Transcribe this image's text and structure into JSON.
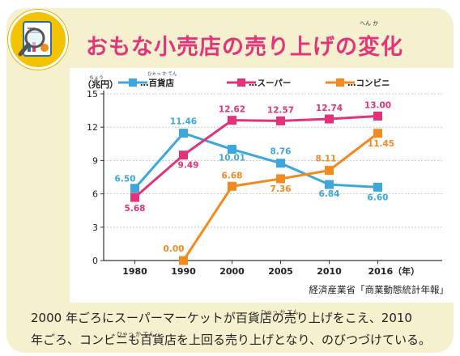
{
  "title": "おもな小売店の売り上げの変化",
  "title_ruby": "へん か",
  "chart_data": {
    "type": "line",
    "ylabel": "（兆円）",
    "ylabel_ruby": "ちょう",
    "x": [
      "1980",
      "1990",
      "2000",
      "2005",
      "2010",
      "2016（年）"
    ],
    "ylim": [
      0,
      15
    ],
    "yticks": [
      "0",
      "3",
      "6",
      "9",
      "12",
      "15"
    ],
    "grid": true,
    "legend_position": "top",
    "legend_ruby": "ひゃっ か てん",
    "series": [
      {
        "name": "…百貨店",
        "color": "#3ba7dd",
        "values": [
          6.5,
          11.46,
          10.01,
          8.76,
          6.84,
          6.6
        ],
        "labels": [
          "6.50",
          "11.46",
          "10.01",
          "8.76",
          "6.84",
          "6.60"
        ]
      },
      {
        "name": "…スーパー",
        "color": "#e3327a",
        "values": [
          5.68,
          9.49,
          12.62,
          12.57,
          12.74,
          13.0
        ],
        "labels": [
          "5.68",
          "9.49",
          "12.62",
          "12.57",
          "12.74",
          "13.00"
        ]
      },
      {
        "name": "…コンビニ",
        "color": "#f28a1e",
        "values": [
          null,
          0.0,
          6.68,
          7.36,
          8.11,
          11.45
        ],
        "labels": [
          null,
          "0.00",
          "6.68",
          "7.36",
          "8.11",
          "11.45"
        ]
      }
    ]
  },
  "source": "経済産業省「商業動態統計年報」",
  "caption": {
    "ruby1": "ひゃっ か てん",
    "line1": "2000 年ごろにスーパーマーケットが百貨店の売り上げをこえ、2010",
    "ruby2": "ひゃっ か てん",
    "line2": "年ごろ、コンビニも百貨店を上回る売り上げとなり、のびつづけている。"
  },
  "colors": {
    "title": "#e2357c",
    "panel": "#f5f1cf",
    "icon_bg": "#f4c300"
  }
}
